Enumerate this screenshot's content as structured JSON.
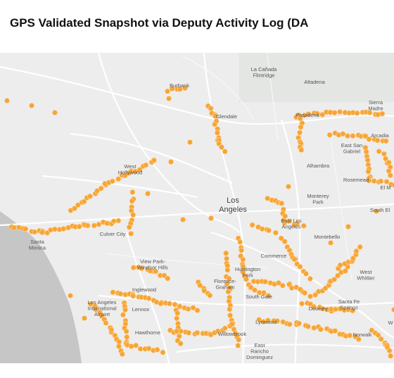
{
  "title": "GPS Validated Snapshot via Deputy Activity Log (DA",
  "places": [
    {
      "lines": [
        "Burbank"
      ]
    },
    {
      "lines": [
        "La Cañada",
        "Flintridge"
      ]
    },
    {
      "lines": [
        "Altadena"
      ]
    },
    {
      "lines": [
        "Glendale"
      ]
    },
    {
      "lines": [
        "Pasadena"
      ]
    },
    {
      "lines": [
        "Sierra",
        "Madre"
      ]
    },
    {
      "lines": [
        "Arcadia"
      ]
    },
    {
      "lines": [
        "East San",
        "Gabriel"
      ]
    },
    {
      "lines": [
        "Alhambra"
      ]
    },
    {
      "lines": [
        "Rosemead"
      ]
    },
    {
      "lines": [
        "El M"
      ]
    },
    {
      "lines": [
        "West",
        "Hollywood"
      ]
    },
    {
      "lines": [
        "Los",
        "Angeles"
      ]
    },
    {
      "lines": [
        "Monterey",
        "Park"
      ]
    },
    {
      "lines": [
        "South El"
      ]
    },
    {
      "lines": [
        "Santa",
        "Monica"
      ]
    },
    {
      "lines": [
        "Culver City"
      ]
    },
    {
      "lines": [
        "East Los",
        "Angeles"
      ]
    },
    {
      "lines": [
        "Montebello"
      ]
    },
    {
      "lines": [
        "View Park-",
        "Windsor Hills"
      ]
    },
    {
      "lines": [
        "Commerce"
      ]
    },
    {
      "lines": [
        "Huntington",
        "Park"
      ]
    },
    {
      "lines": [
        "Florence-",
        "Graham"
      ]
    },
    {
      "lines": [
        "West",
        "Whittier"
      ]
    },
    {
      "lines": [
        "Inglewood"
      ]
    },
    {
      "lines": [
        "South Gate"
      ]
    },
    {
      "lines": [
        "Los Angeles",
        "International",
        "Airport"
      ]
    },
    {
      "lines": [
        "Lennox"
      ]
    },
    {
      "lines": [
        "Downey"
      ]
    },
    {
      "lines": [
        "Santa Fe",
        "Springs"
      ]
    },
    {
      "lines": [
        "Hawthorne"
      ]
    },
    {
      "lines": [
        "Lynwood"
      ]
    },
    {
      "lines": [
        "Willowbrook"
      ]
    },
    {
      "lines": [
        "Norwalk"
      ]
    },
    {
      "lines": [
        "East",
        "Rancho",
        "Dominguez"
      ]
    },
    {
      "lines": [
        "W"
      ]
    }
  ]
}
